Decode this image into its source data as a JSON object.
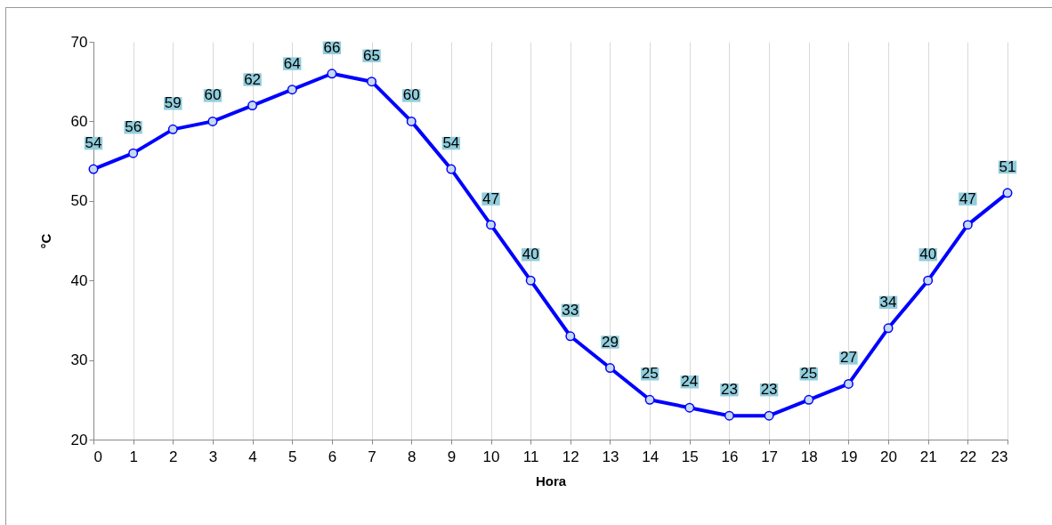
{
  "chart_data": {
    "type": "line",
    "xlabel": "Hora",
    "ylabel": "°C",
    "x": [
      0,
      1,
      2,
      3,
      4,
      5,
      6,
      7,
      8,
      9,
      10,
      11,
      12,
      13,
      14,
      15,
      16,
      17,
      18,
      19,
      20,
      21,
      22,
      23
    ],
    "series": [
      {
        "color": "#0000ff",
        "values": [
          54,
          56,
          59,
          60,
          62,
          64,
          66,
          65,
          60,
          54,
          47,
          40,
          33,
          29,
          25,
          24,
          23,
          23,
          25,
          27,
          34,
          40,
          47,
          51
        ]
      }
    ],
    "xlim": [
      0,
      23
    ],
    "xticks": [
      0,
      1,
      2,
      3,
      4,
      5,
      6,
      7,
      8,
      9,
      10,
      11,
      12,
      13,
      14,
      15,
      16,
      17,
      18,
      19,
      20,
      21,
      22,
      23
    ],
    "ylim": [
      20,
      70
    ],
    "yticks": [
      20,
      30,
      40,
      50,
      60,
      70
    ],
    "grid": "x",
    "marker": "circle",
    "line_style": "solid",
    "data_labels": true
  }
}
